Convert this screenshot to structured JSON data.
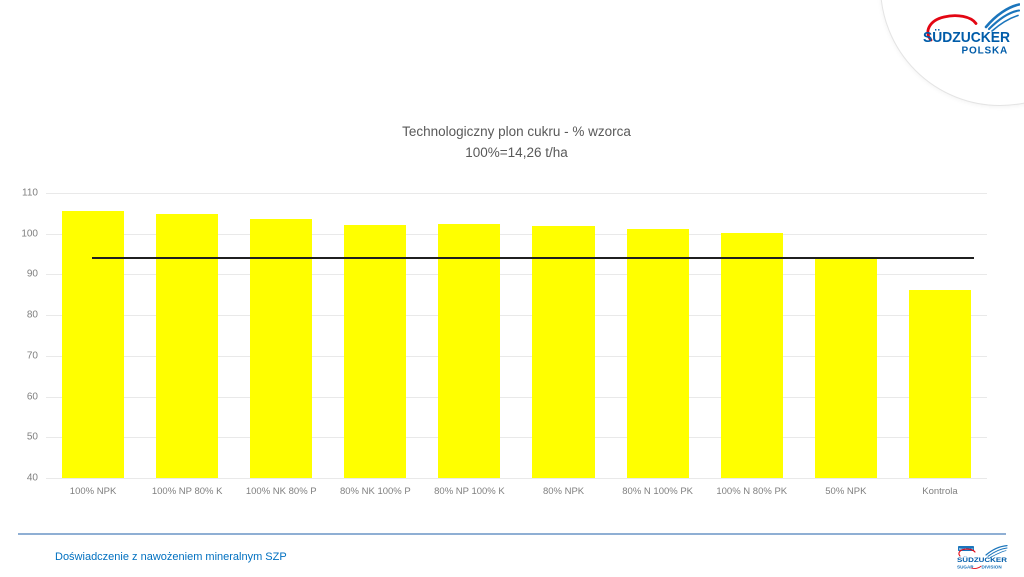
{
  "header_logo": {
    "brand": "SÜDZUCKER",
    "subbrand": "POLSKA"
  },
  "footer": {
    "caption": "Doświadczenie z nawożeniem mineralnym SZP",
    "logo": {
      "member_of": "Member of",
      "brand": "SÜDZUCKER",
      "division_left": "SUGAR",
      "division_right": "DIVISION"
    }
  },
  "colors": {
    "bar": "#ffff00",
    "reference_line": "#1f1f1f",
    "title_text": "#595959",
    "axis_text": "#7f7f7f",
    "gridline": "#e9e9e9",
    "footer_text": "#0070c0",
    "footer_divider": "#8fafd4",
    "brand_blue": "#005ca9",
    "brand_light_blue": "#1b75bc",
    "brand_red": "#e30613"
  },
  "chart_data": {
    "type": "bar",
    "title": "Technologiczny plon cukru - % wzorca",
    "subtitle": "100%=14,26 t/ha",
    "categories": [
      "100% NPK",
      "100% NP 80% K",
      "100% NK 80% P",
      "80% NK 100% P",
      "80% NP 100% K",
      "80% NPK",
      "80% N 100% PK",
      "100% N 80% PK",
      "50% NPK",
      "Kontrola"
    ],
    "values": [
      105.7,
      104.8,
      103.6,
      102.2,
      102.3,
      102.0,
      101.2,
      100.1,
      94.4,
      86.2
    ],
    "bar_color": "#ffff00",
    "xlabel": "",
    "ylabel": "",
    "ylim": [
      40,
      110
    ],
    "ytick_step": 10,
    "grid": true,
    "legend": false,
    "reference_line": {
      "value": 94.1,
      "x_start_frac": 0.049,
      "x_end_frac": 0.986,
      "color": "#1f1f1f"
    },
    "bar_width_frac_of_slot": 0.66
  }
}
